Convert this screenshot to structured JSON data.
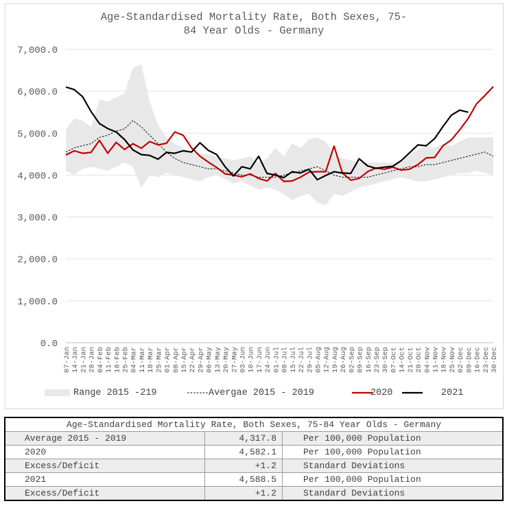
{
  "chart_data": {
    "type": "line",
    "title": "Age-Standardised Mortality Rate, Both Sexes, 75-84 Year Olds - Germany",
    "title_lines": [
      "Age-Standardised Mortality Rate, Both Sexes, 75-",
      "84 Year Olds - Germany"
    ],
    "ylim": [
      0,
      7000
    ],
    "y_ticks": [
      "7,000.0",
      "6,000.0",
      "5,000.0",
      "4,000.0",
      "3,000.0",
      "2,000.0",
      "1,000.0",
      "0.0"
    ],
    "y_tick_values": [
      7000,
      6000,
      5000,
      4000,
      3000,
      2000,
      1000,
      0
    ],
    "grid": true,
    "legend_position": "bottom",
    "categories": [
      "07-Jan",
      "14-Jan",
      "21-Jan",
      "28-Jan",
      "04-Feb",
      "11-Feb",
      "18-Feb",
      "25-Feb",
      "04-Mar",
      "11-Mar",
      "18-Mar",
      "25-Mar",
      "01-Apr",
      "08-Apr",
      "15-Apr",
      "22-Apr",
      "29-Apr",
      "06-May",
      "13-May",
      "20-May",
      "27-May",
      "03-Jun",
      "10-Jun",
      "17-Jun",
      "24-Jun",
      "01-Jul",
      "08-Jul",
      "15-Jul",
      "22-Jul",
      "29-Jul",
      "05-Aug",
      "12-Aug",
      "19-Aug",
      "26-Aug",
      "02-Sep",
      "09-Sep",
      "16-Sep",
      "23-Sep",
      "30-Sep",
      "07-Oct",
      "14-Oct",
      "21-Oct",
      "28-Oct",
      "04-Nov",
      "11-Nov",
      "18-Nov",
      "25-Nov",
      "02-Dec",
      "09-Dec",
      "16-Dec",
      "23-Dec",
      "30-Dec"
    ],
    "range": {
      "name": "Range 2015 -219",
      "color": "#e8e8e8",
      "low": [
        4100,
        4000,
        4150,
        4200,
        4150,
        4100,
        4200,
        4300,
        4200,
        3700,
        4000,
        3950,
        4050,
        4000,
        3950,
        3900,
        3850,
        3950,
        4000,
        3900,
        3800,
        3850,
        3750,
        3650,
        3700,
        3650,
        3550,
        3400,
        3500,
        3550,
        3350,
        3280,
        3550,
        3500,
        3600,
        3700,
        3750,
        3800,
        3850,
        3900,
        3950,
        3900,
        3850,
        3850,
        3900,
        3950,
        4000,
        4050,
        4050,
        4100,
        4050,
        4000
      ],
      "high": [
        5100,
        5350,
        5300,
        5150,
        5800,
        5750,
        5850,
        5950,
        6550,
        6650,
        5750,
        5200,
        4900,
        4750,
        4650,
        4550,
        4500,
        4500,
        4450,
        4400,
        4350,
        4400,
        4450,
        4300,
        4400,
        4650,
        4450,
        4750,
        4650,
        4850,
        4900,
        4800,
        4500,
        4400,
        4350,
        4300,
        4300,
        4300,
        4300,
        4300,
        4300,
        4500,
        4600,
        4700,
        4650,
        4750,
        4700,
        4800,
        4900,
        4900,
        4900,
        4900
      ]
    },
    "series": [
      {
        "name": "Avergae 2015 - 2019",
        "color": "#000000",
        "dash": true,
        "values": [
          4550,
          4650,
          4700,
          4750,
          4900,
          4950,
          5050,
          5100,
          5300,
          5150,
          4950,
          4750,
          4550,
          4400,
          4300,
          4250,
          4200,
          4150,
          4150,
          4100,
          4050,
          4000,
          4000,
          3950,
          3950,
          3950,
          4000,
          4050,
          4100,
          4150,
          4200,
          4100,
          4000,
          3950,
          3950,
          3950,
          3950,
          4000,
          4050,
          4100,
          4150,
          4200,
          4200,
          4250,
          4250,
          4300,
          4350,
          4400,
          4450,
          4500,
          4550,
          4450
        ]
      },
      {
        "name": "2020",
        "color": "#c00000",
        "dash": false,
        "values": [
          4480,
          4580,
          4520,
          4540,
          4830,
          4520,
          4780,
          4610,
          4750,
          4640,
          4800,
          4720,
          4760,
          5030,
          4950,
          4650,
          4450,
          4310,
          4180,
          4030,
          4000,
          3960,
          4030,
          3920,
          3860,
          4040,
          3850,
          3860,
          3950,
          4070,
          4080,
          4080,
          4690,
          4050,
          3880,
          3920,
          4080,
          4170,
          4140,
          4190,
          4120,
          4140,
          4250,
          4410,
          4420,
          4700,
          4840,
          5080,
          5350,
          5700,
          5900,
          6110
        ]
      },
      {
        "name": "2021",
        "color": "#000000",
        "dash": false,
        "values": [
          6100,
          6040,
          5870,
          5520,
          5230,
          5110,
          5030,
          4850,
          4600,
          4490,
          4470,
          4380,
          4540,
          4520,
          4580,
          4550,
          4770,
          4590,
          4490,
          4200,
          3980,
          4200,
          4150,
          4450,
          4040,
          4000,
          3940,
          4080,
          4050,
          4140,
          3890,
          3990,
          4080,
          4050,
          4040,
          4390,
          4220,
          4160,
          4190,
          4210,
          4340,
          4530,
          4720,
          4700,
          4870,
          5160,
          5430,
          5550,
          5500,
          null,
          null,
          null
        ]
      }
    ]
  },
  "table": {
    "header": "Age-Standardised Mortality Rate, Both Sexes, 75-84 Year Olds - Germany",
    "rows": [
      {
        "label": "Average 2015 - 2019",
        "value": "4,317.8",
        "unit": "Per 100,000 Population"
      },
      {
        "label": "2020",
        "value": "4,582.1",
        "unit": "Per 100,000 Population"
      },
      {
        "label": "Excess/Deficit",
        "value": "+1.2",
        "unit": "Standard Deviations"
      },
      {
        "label": "2021",
        "value": "4,588.5",
        "unit": "Per 100,000 Population"
      },
      {
        "label": "Excess/Deficit",
        "value": "+1.2",
        "unit": "Standard Deviations"
      }
    ]
  }
}
